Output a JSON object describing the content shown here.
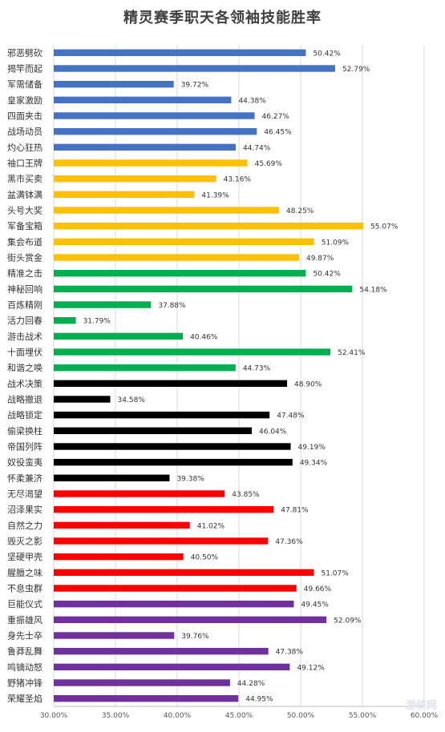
{
  "chart_data": {
    "type": "bar",
    "orientation": "horizontal",
    "title": "精灵赛季职天各领袖技能胜率",
    "xlim": [
      0.3,
      0.6
    ],
    "x_ticks": [
      "30.00%",
      "35.00%",
      "40.00%",
      "45.00%",
      "50.00%",
      "55.00%",
      "60.00%"
    ],
    "grid": true,
    "legend": "none",
    "categories": [
      "邪恶劈砍",
      "揭竿而起",
      "军需储备",
      "皇家激励",
      "四面夹击",
      "战场动员",
      "灼心狂热",
      "袖口王牌",
      "黑市买卖",
      "盆满钵满",
      "头号大奖",
      "军备宝箱",
      "集会布道",
      "街头赏金",
      "精准之击",
      "神秘回响",
      "百炼精刚",
      "活力回春",
      "游击战术",
      "十面埋伏",
      "和谐之唤",
      "战术决策",
      "战略撤退",
      "战略锁定",
      "偷梁换柱",
      "帝国列阵",
      "奴役蛮夷",
      "怀柔兼济",
      "无尽渴望",
      "沼泽果实",
      "自然之力",
      "毁灭之影",
      "坚硬甲壳",
      "腥膻之味",
      "不息虫群",
      "巨能仪式",
      "重振雄风",
      "身先士卒",
      "鲁莽乱舞",
      "鸣镝动怒",
      "野猪冲锋",
      "荣耀圣焰"
    ],
    "values": [
      0.5042,
      0.5279,
      0.3972,
      0.4438,
      0.4627,
      0.4645,
      0.4474,
      0.4569,
      0.4316,
      0.4139,
      0.4825,
      0.5507,
      0.5109,
      0.4987,
      0.5042,
      0.5418,
      0.3788,
      0.3179,
      0.4046,
      0.5241,
      0.4473,
      0.489,
      0.3458,
      0.4748,
      0.4604,
      0.4919,
      0.4934,
      0.3938,
      0.4385,
      0.4781,
      0.4102,
      0.4736,
      0.405,
      0.5107,
      0.4966,
      0.4945,
      0.5209,
      0.3976,
      0.4738,
      0.4912,
      0.4428,
      0.4495
    ],
    "labels": [
      "50.42%",
      "52.79%",
      "39.72%",
      "44.38%",
      "46.27%",
      "46.45%",
      "44.74%",
      "45.69%",
      "43.16%",
      "41.39%",
      "48.25%",
      "55.07%",
      "51.09%",
      "49.87%",
      "50.42%",
      "54.18%",
      "37.88%",
      "31.79%",
      "40.46%",
      "52.41%",
      "44.73%",
      "48.90%",
      "34.58%",
      "47.48%",
      "46.04%",
      "49.19%",
      "49.34%",
      "39.38%",
      "43.85%",
      "47.81%",
      "41.02%",
      "47.36%",
      "40.50%",
      "51.07%",
      "49.66%",
      "49.45%",
      "52.09%",
      "39.76%",
      "47.38%",
      "49.12%",
      "44.28%",
      "44.95%"
    ],
    "colors": [
      "#4472c4",
      "#4472c4",
      "#4472c4",
      "#4472c4",
      "#4472c4",
      "#4472c4",
      "#4472c4",
      "#ffc000",
      "#ffc000",
      "#ffc000",
      "#ffc000",
      "#ffc000",
      "#ffc000",
      "#ffc000",
      "#00b050",
      "#00b050",
      "#00b050",
      "#00b050",
      "#00b050",
      "#00b050",
      "#00b050",
      "#000000",
      "#000000",
      "#000000",
      "#000000",
      "#000000",
      "#000000",
      "#000000",
      "#ff0000",
      "#ff0000",
      "#ff0000",
      "#ff0000",
      "#ff0000",
      "#ff0000",
      "#ff0000",
      "#7030a0",
      "#7030a0",
      "#7030a0",
      "#7030a0",
      "#7030a0",
      "#7030a0",
      "#7030a0"
    ]
  },
  "watermark": "游侠网"
}
